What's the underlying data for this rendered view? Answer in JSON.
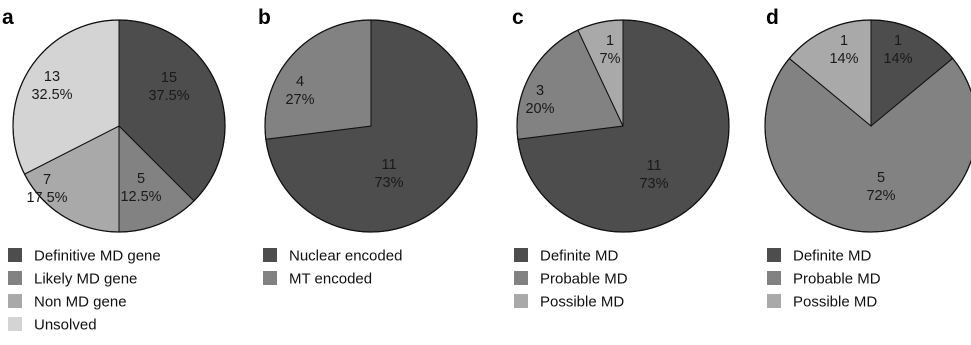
{
  "chart_data": [
    {
      "type": "pie",
      "panel": "a",
      "slices": [
        {
          "label": "Definitive MD gene",
          "count": "15",
          "percent": "37.5%",
          "value": 37.5,
          "color": "#4d4d4d",
          "text_color": "#1a1a1a"
        },
        {
          "label": "Likely MD gene",
          "count": "5",
          "percent": "12.5%",
          "value": 12.5,
          "color": "#828282",
          "text_color": "#1a1a1a"
        },
        {
          "label": "Non MD gene",
          "count": "7",
          "percent": "17.5%",
          "value": 17.5,
          "color": "#a9a9a9",
          "text_color": "#1a1a1a"
        },
        {
          "label": "Unsolved",
          "count": "13",
          "percent": "32.5%",
          "value": 32.5,
          "color": "#d4d4d4",
          "text_color": "#1a1a1a"
        }
      ],
      "legend": [
        "Definitive MD gene",
        "Likely MD gene",
        "Non MD gene",
        "Unsolved"
      ]
    },
    {
      "type": "pie",
      "panel": "b",
      "slices": [
        {
          "label": "Nuclear encoded",
          "count": "11",
          "percent": "73%",
          "value": 73,
          "color": "#4d4d4d",
          "text_color": "#1a1a1a"
        },
        {
          "label": "MT encoded",
          "count": "4",
          "percent": "27%",
          "value": 27,
          "color": "#828282",
          "text_color": "#1a1a1a"
        }
      ],
      "legend": [
        "Nuclear encoded",
        "MT encoded"
      ]
    },
    {
      "type": "pie",
      "panel": "c",
      "slices": [
        {
          "label": "Definite MD",
          "count": "11",
          "percent": "73%",
          "value": 73,
          "color": "#4d4d4d",
          "text_color": "#1a1a1a"
        },
        {
          "label": "Probable MD",
          "count": "3",
          "percent": "20%",
          "value": 20,
          "color": "#828282",
          "text_color": "#1a1a1a"
        },
        {
          "label": "Possible MD",
          "count": "1",
          "percent": "7%",
          "value": 7,
          "color": "#a9a9a9",
          "text_color": "#1a1a1a"
        }
      ],
      "legend": [
        "Definite MD",
        "Probable MD",
        "Possible MD"
      ]
    },
    {
      "type": "pie",
      "panel": "d",
      "slices": [
        {
          "label": "Definite MD",
          "count": "1",
          "percent": "14%",
          "value": 14,
          "color": "#4d4d4d",
          "text_color": "#1a1a1a"
        },
        {
          "label": "Probable MD",
          "count": "5",
          "percent": "72%",
          "value": 72,
          "color": "#828282",
          "text_color": "#1a1a1a"
        },
        {
          "label": "Possible MD",
          "count": "1",
          "percent": "14%",
          "value": 14,
          "color": "#a9a9a9",
          "text_color": "#1a1a1a"
        }
      ],
      "legend": [
        "Definite MD",
        "Probable MD",
        "Possible MD"
      ]
    }
  ]
}
